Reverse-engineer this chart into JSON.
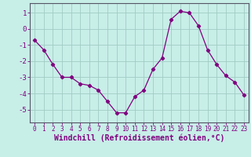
{
  "x": [
    0,
    1,
    2,
    3,
    4,
    5,
    6,
    7,
    8,
    9,
    10,
    11,
    12,
    13,
    14,
    15,
    16,
    17,
    18,
    19,
    20,
    21,
    22,
    23
  ],
  "y": [
    -0.7,
    -1.3,
    -2.2,
    -3.0,
    -3.0,
    -3.4,
    -3.5,
    -3.8,
    -4.5,
    -5.2,
    -5.2,
    -4.2,
    -3.8,
    -2.5,
    -1.8,
    0.6,
    1.1,
    1.0,
    0.2,
    -1.3,
    -2.2,
    -2.9,
    -3.3,
    -4.1
  ],
  "line_color": "#800080",
  "marker": "D",
  "marker_size": 2.2,
  "bg_color": "#c8eee8",
  "grid_color": "#a0ccc4",
  "xlabel": "Windchill (Refroidissement éolien,°C)",
  "xlim": [
    -0.5,
    23.5
  ],
  "ylim": [
    -5.8,
    1.6
  ],
  "yticks": [
    -5,
    -4,
    -3,
    -2,
    -1,
    0,
    1
  ],
  "xticks": [
    0,
    1,
    2,
    3,
    4,
    5,
    6,
    7,
    8,
    9,
    10,
    11,
    12,
    13,
    14,
    15,
    16,
    17,
    18,
    19,
    20,
    21,
    22,
    23
  ],
  "spine_color": "#555566",
  "tick_color": "#800080",
  "label_color": "#800080",
  "xlabel_fontsize": 7.0,
  "ytick_fontsize": 6.5,
  "xtick_fontsize": 5.5
}
